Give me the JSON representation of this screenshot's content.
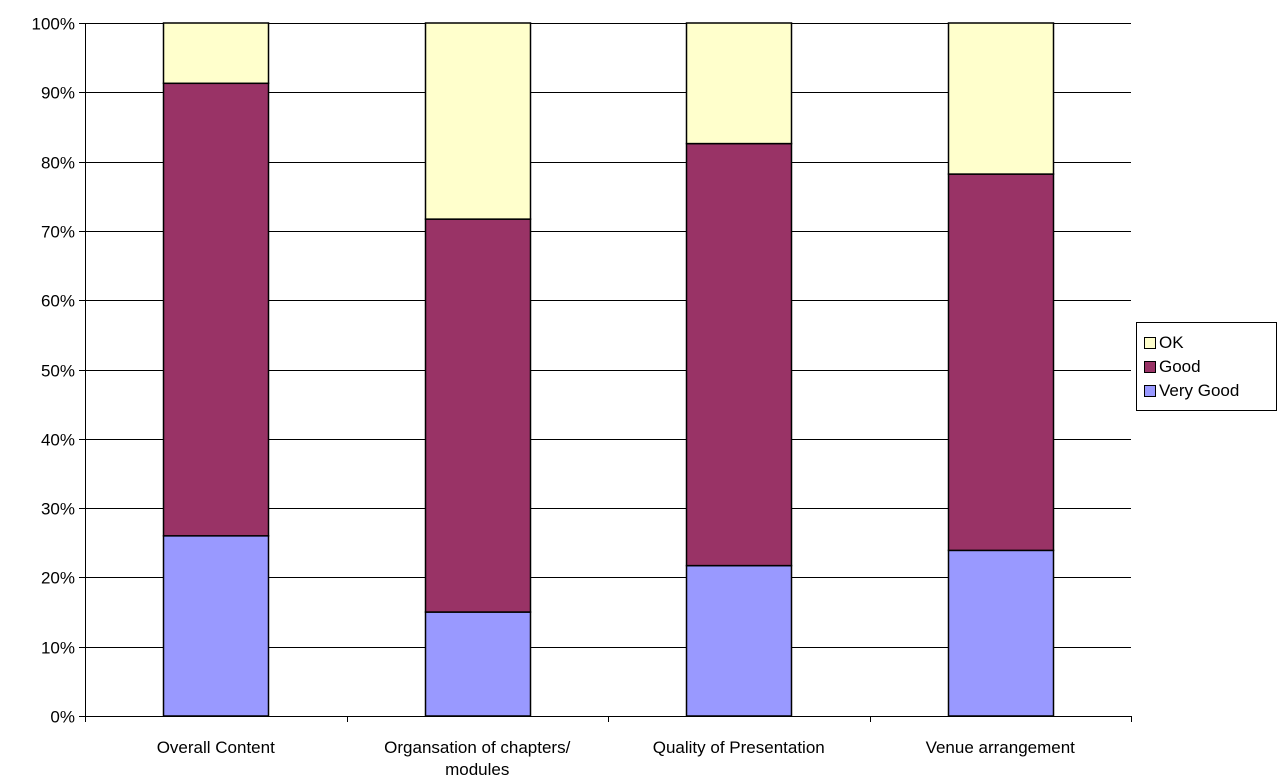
{
  "chart_data": {
    "type": "bar",
    "stacked": true,
    "percent_stacked": true,
    "categories": [
      [
        "Overall Content"
      ],
      [
        "Organsation of chapters/",
        "modules"
      ],
      [
        "Quality of Presentation"
      ],
      [
        "Venue arrangement"
      ]
    ],
    "series": [
      {
        "name": "Very Good",
        "color": "#9999FF",
        "values": [
          26,
          15,
          21.7,
          23.9
        ]
      },
      {
        "name": "Good",
        "color": "#993366",
        "values": [
          65.3,
          56.7,
          60.9,
          54.3
        ]
      },
      {
        "name": "OK",
        "color": "#FFFFCC",
        "values": [
          8.7,
          28.3,
          17.4,
          21.8
        ]
      }
    ],
    "ylim": [
      0,
      100
    ],
    "yticks": [
      "0%",
      "10%",
      "20%",
      "30%",
      "40%",
      "50%",
      "60%",
      "70%",
      "80%",
      "90%",
      "100%"
    ],
    "grid": true,
    "legend_position": "right",
    "legend_order": [
      "OK",
      "Good",
      "Very Good"
    ]
  }
}
